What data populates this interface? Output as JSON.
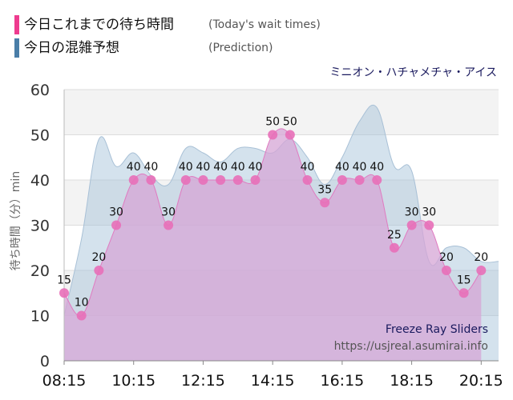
{
  "legend": [
    {
      "label": "今日これまでの待ち時間",
      "sub": "(Today's wait times)",
      "color": "#ee3b8f"
    },
    {
      "label": "今日の混雑予想",
      "sub": "(Prediction)",
      "color": "#4a7ea8"
    }
  ],
  "attraction_name": "ミニオン・ハチャメチャ・アイス",
  "watermark": {
    "line1": "Freeze Ray Sliders",
    "line2": "https://usjreal.asumirai.info"
  },
  "chart_data": {
    "type": "area",
    "ylabel": "待ち時間（分）min",
    "xlabel": "",
    "ylim": [
      0,
      60
    ],
    "yticks": [
      0,
      10,
      20,
      30,
      40,
      50,
      60
    ],
    "xlim": [
      "08:15",
      "20:45"
    ],
    "xticks": [
      "08:15",
      "10:15",
      "12:15",
      "14:15",
      "16:15",
      "18:15",
      "20:15"
    ],
    "grid": true,
    "series": [
      {
        "name": "今日これまでの待ち時間",
        "color": "#ee3b8f",
        "x": [
          "08:15",
          "08:45",
          "09:15",
          "09:45",
          "10:15",
          "10:45",
          "11:15",
          "11:45",
          "12:15",
          "12:45",
          "13:15",
          "13:45",
          "14:15",
          "14:45",
          "15:15",
          "15:45",
          "16:15",
          "16:45",
          "17:15",
          "17:45",
          "18:15",
          "18:45",
          "19:15",
          "19:45",
          "20:15"
        ],
        "values": [
          15,
          10,
          20,
          30,
          40,
          40,
          30,
          40,
          40,
          40,
          40,
          40,
          50,
          50,
          40,
          35,
          40,
          40,
          40,
          25,
          30,
          30,
          20,
          15,
          20
        ]
      },
      {
        "name": "今日の混雑予想",
        "color": "#4a7ea8",
        "x": [
          "08:15",
          "08:45",
          "09:15",
          "09:45",
          "10:15",
          "10:45",
          "11:15",
          "11:45",
          "12:15",
          "12:45",
          "13:15",
          "13:45",
          "14:15",
          "14:45",
          "15:15",
          "15:45",
          "16:15",
          "16:45",
          "17:15",
          "17:45",
          "18:15",
          "18:45",
          "19:15",
          "19:45",
          "20:15",
          "20:45"
        ],
        "values": [
          10,
          27,
          49,
          43,
          46,
          41,
          39,
          47,
          46,
          44,
          47,
          47,
          46,
          49,
          45,
          39,
          45,
          53,
          56,
          43,
          42,
          22,
          25,
          25,
          22,
          22
        ]
      }
    ]
  }
}
